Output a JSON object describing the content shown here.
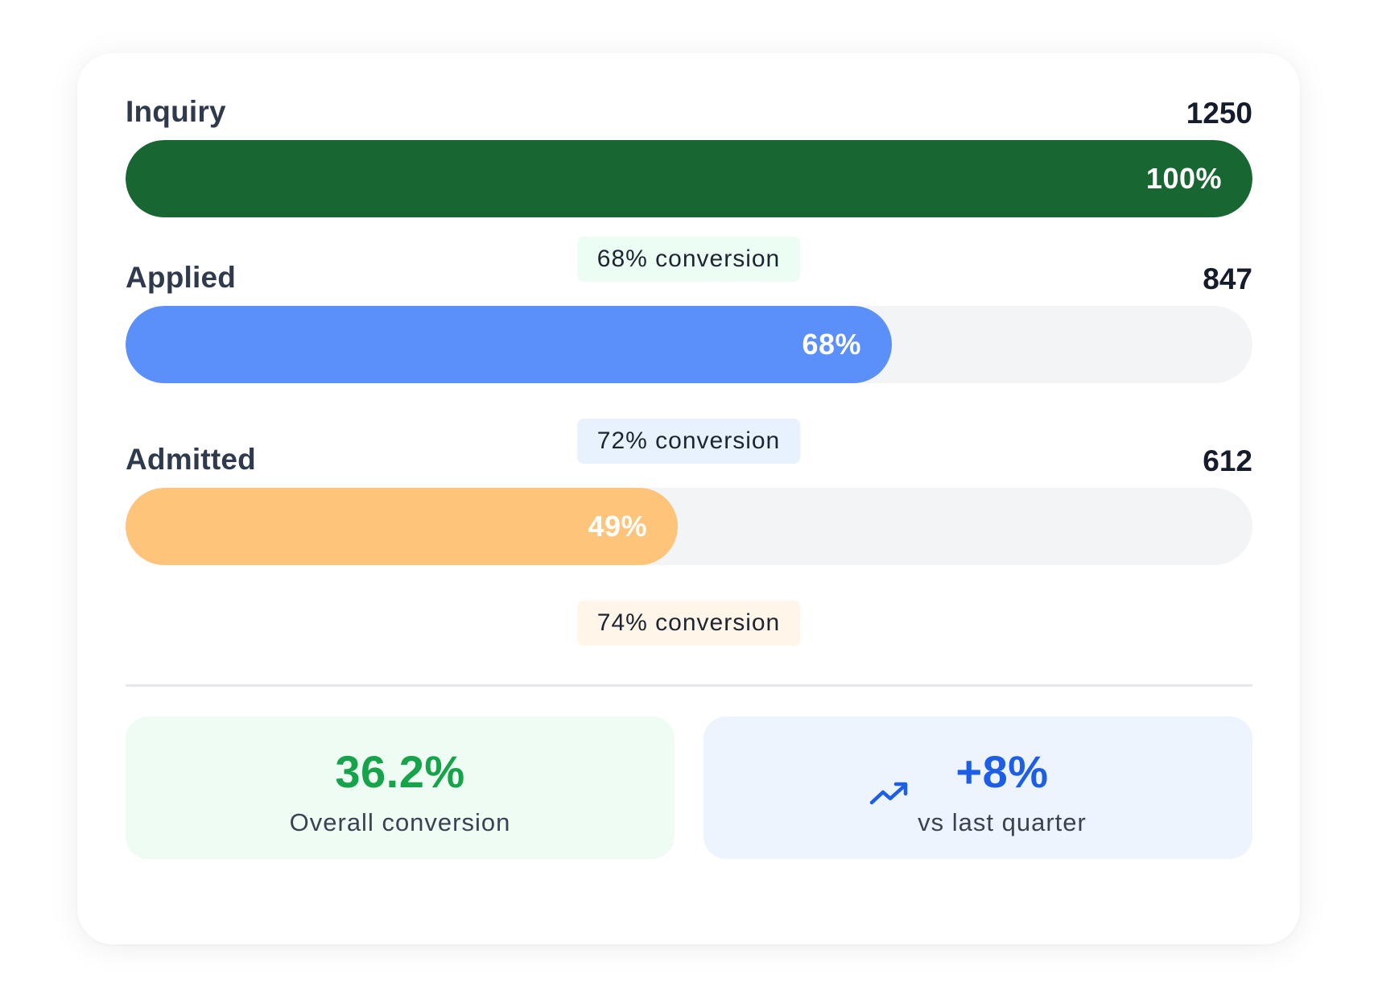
{
  "chart_data": {
    "type": "bar",
    "orientation": "horizontal-funnel",
    "stages": [
      {
        "label": "Inquiry",
        "count": "1250",
        "percent": 100,
        "percent_label": "100%",
        "color": "#186632"
      },
      {
        "label": "Applied",
        "count": "847",
        "percent": 68,
        "percent_label": "68%",
        "color": "#5b8ffa"
      },
      {
        "label": "Admitted",
        "count": "612",
        "percent": 49,
        "percent_label": "49%",
        "color": "#fec47a"
      }
    ],
    "conversions": [
      {
        "label": "68% conversion",
        "bg": "#ecfdf3"
      },
      {
        "label": "72% conversion",
        "bg": "#e8f1fe"
      },
      {
        "label": "74% conversion",
        "bg": "#fff5e9"
      }
    ]
  },
  "summary": {
    "overall": {
      "value": "36.2%",
      "caption": "Overall conversion",
      "color": "#16a34a",
      "bg": "#effcf4"
    },
    "quarter": {
      "value": "+8%",
      "caption": "vs last quarter",
      "color": "#1d5ee6",
      "bg": "#eef4fe",
      "icon": "trending-up-icon"
    }
  }
}
